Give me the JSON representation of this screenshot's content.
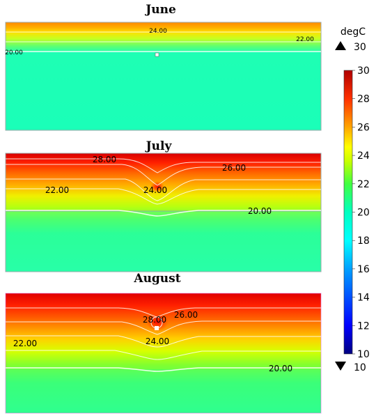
{
  "colorbar": {
    "unit": "degC",
    "max_label": "30",
    "min_label": "10",
    "range": [
      10,
      30
    ],
    "ticks": [
      "30",
      "28",
      "26",
      "24",
      "22",
      "20",
      "18",
      "16",
      "14",
      "12",
      "10"
    ],
    "colors": [
      "#000080",
      "#0000ff",
      "#00bfff",
      "#00ffff",
      "#00ffcc",
      "#40ff40",
      "#c8ff00",
      "#ffff00",
      "#ffa500",
      "#ff3000",
      "#b00000"
    ]
  },
  "chart_data": [
    {
      "type": "heatmap",
      "title": "June",
      "contours": [
        {
          "label": "24.00",
          "value": 24
        },
        {
          "label": "22.00",
          "value": 22
        },
        {
          "label": "20.00",
          "value": 20
        }
      ]
    },
    {
      "type": "heatmap",
      "title": "July",
      "contours": [
        {
          "label": "28.00",
          "value": 28
        },
        {
          "label": "26.00",
          "value": 26
        },
        {
          "label": "22.00",
          "value": 22
        },
        {
          "label": "24.00",
          "value": 24
        },
        {
          "label": "20.00",
          "value": 20
        }
      ]
    },
    {
      "type": "heatmap",
      "title": "August",
      "contours": [
        {
          "label": "28.00",
          "value": 28
        },
        {
          "label": "26.00",
          "value": 26
        },
        {
          "label": "22.00",
          "value": 22
        },
        {
          "label": "24.00",
          "value": 24
        },
        {
          "label": "20.00",
          "value": 20
        }
      ]
    }
  ]
}
